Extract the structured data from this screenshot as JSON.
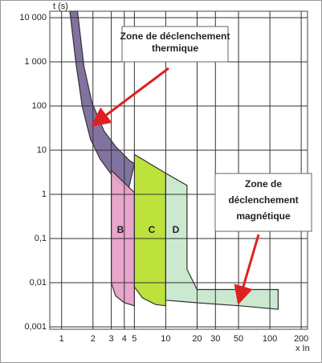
{
  "chart_data": {
    "type": "area",
    "ylabel": "t (s)",
    "xlabel": "x In",
    "xscale": "log",
    "yscale": "log",
    "grid": true,
    "xlim": [
      0.77,
      230
    ],
    "ylim": [
      0.00088,
      14000
    ],
    "xticks": [
      1,
      2,
      3,
      4,
      5,
      10,
      20,
      30,
      50,
      100,
      200
    ],
    "yticks": [
      {
        "value": 0.001,
        "label": "0,001"
      },
      {
        "value": 0.01,
        "label": "0,01"
      },
      {
        "value": 0.1,
        "label": "0,1"
      },
      1,
      10,
      100,
      {
        "value": 1000,
        "label": "1 000"
      },
      {
        "value": 10000,
        "label": "10 000"
      }
    ],
    "series": [
      {
        "color": "#7a6a9a",
        "x": [
          1.2,
          1.42,
          1.64,
          1.96,
          2.56,
          3.33,
          4.5,
          5,
          4.35,
          3.05,
          2.34,
          1.89,
          1.58,
          1.37
        ],
        "values": [
          14000,
          14000,
          780,
          118,
          27,
          11.8,
          5.8,
          5,
          1.18,
          2.7,
          6.3,
          18,
          96,
          960
        ]
      },
      {
        "name": "B",
        "color": "#e8a0c8",
        "x": [
          3,
          5,
          5,
          4,
          3.3,
          3
        ],
        "values": [
          3.5,
          1.1,
          0.003,
          0.0035,
          0.005,
          0.01
        ]
      },
      {
        "name": "C",
        "color": "#b8e030",
        "x": [
          5,
          7,
          10,
          10,
          8,
          6,
          5
        ],
        "values": [
          8,
          5,
          3,
          0.003,
          0.0032,
          0.0045,
          0.008
        ]
      },
      {
        "name": "D",
        "color": "#c8e8cc",
        "x": [
          10,
          16,
          16,
          20,
          120,
          120,
          50,
          20,
          10
        ],
        "values": [
          3,
          1.6,
          0.02,
          0.007,
          0.007,
          0.0025,
          0.003,
          0.0035,
          0.004
        ]
      }
    ],
    "annotations": [
      {
        "lines": [
          "Zone de déclenchement",
          "thermique"
        ]
      },
      {
        "lines": [
          "Zone de",
          "déclenchement",
          "magnétique"
        ]
      }
    ]
  }
}
